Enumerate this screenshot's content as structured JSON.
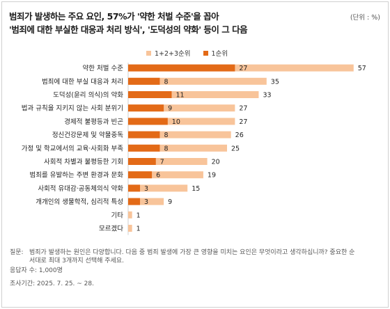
{
  "title_line1": "범죄가 발생하는 주요 요인, 57%가 '약한 처벌 수준'을 꼽아",
  "title_line2": "'범죄에 대한 부실한 대응과 처리 방식', '도덕성의 약화' 등이 그 다음",
  "unit_label": "(단위 : %)",
  "legend": [
    {
      "label": "1+2+3순위",
      "color": "#f8c49a"
    },
    {
      "label": "1순위",
      "color": "#e36a17"
    }
  ],
  "footer": {
    "question_label": "질문:",
    "question_text": "범죄가 발생하는 원인은 다양합니다. 다음 중 범죄 발생에 가장 큰 영향을 미치는 요인은 무엇이라고 생각하십니까? 중요한 순서대로 최대 3개까지 선택해 주세요.",
    "respondents": "응답자 수: 1,000명",
    "period": "조사기간: 2025. 7. 25. ~ 28."
  },
  "chart_data": {
    "type": "bar",
    "orientation": "horizontal",
    "categories": [
      "약한 처벌 수준",
      "범죄에 대한 부실 대응과 처리",
      "도덕성(윤리 의식)의 약화",
      "법과 규칙을 지키지 않는 사회 분위기",
      "경제적 불평등과 빈곤",
      "정신건강문제 및 약물중독",
      "가정 및 학교에서의 교육·사회화 부족",
      "사회적 차별과 불평등한 기회",
      "범죄를 유발하는 주변 환경과 문화",
      "사회적 유대감·공동체의식 약화",
      "개개인의 생물학적, 심리적 특성",
      "기타",
      "모르겠다"
    ],
    "series": [
      {
        "name": "1+2+3순위",
        "color": "#f8c49a",
        "values": [
          57,
          35,
          33,
          27,
          27,
          26,
          25,
          20,
          19,
          15,
          9,
          1,
          1
        ]
      },
      {
        "name": "1순위",
        "color": "#e36a17",
        "values": [
          27,
          8,
          11,
          9,
          10,
          8,
          8,
          7,
          6,
          3,
          3,
          null,
          null
        ]
      }
    ],
    "xlim": [
      0,
      60
    ],
    "grid": false,
    "legend_position": "top"
  }
}
